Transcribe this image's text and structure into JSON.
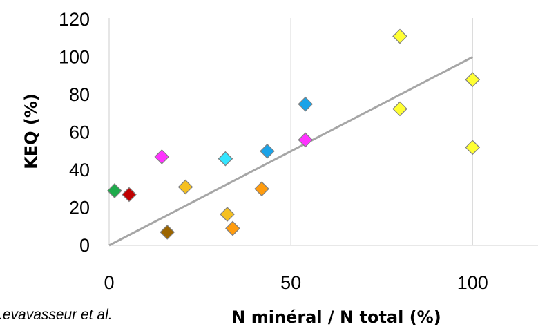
{
  "chart_data": {
    "type": "scatter",
    "xlabel": "N minéral / N total (%)",
    "ylabel": "KEQ (%)",
    "xlim": [
      0,
      118
    ],
    "ylim": [
      0,
      120
    ],
    "x_ticks": [
      0,
      50,
      100
    ],
    "y_ticks": [
      0,
      20,
      40,
      60,
      80,
      100,
      120
    ],
    "grid": "vertical",
    "trend_line": {
      "x": [
        0,
        100
      ],
      "y": [
        0,
        100
      ],
      "color": "#a6a6a6"
    },
    "points": [
      {
        "x": 1.5,
        "y": 29,
        "color": "#1eab4b"
      },
      {
        "x": 5.5,
        "y": 27,
        "color": "#c00000"
      },
      {
        "x": 14.5,
        "y": 47,
        "color": "#ff33ff"
      },
      {
        "x": 16,
        "y": 7,
        "color": "#9c6500"
      },
      {
        "x": 21,
        "y": 31,
        "color": "#f5c021"
      },
      {
        "x": 32,
        "y": 46,
        "color": "#33e5ff"
      },
      {
        "x": 32.5,
        "y": 16.5,
        "color": "#f5c021"
      },
      {
        "x": 34,
        "y": 9,
        "color": "#ff9c0f"
      },
      {
        "x": 42,
        "y": 30,
        "color": "#ff9c0f"
      },
      {
        "x": 43.5,
        "y": 50,
        "color": "#1ba3e8"
      },
      {
        "x": 54,
        "y": 75,
        "color": "#1ba3e8"
      },
      {
        "x": 54,
        "y": 56,
        "color": "#ff33ff"
      },
      {
        "x": 80,
        "y": 111,
        "color": "#ffff33"
      },
      {
        "x": 80,
        "y": 72.5,
        "color": "#ffff33"
      },
      {
        "x": 100,
        "y": 88,
        "color": "#ffff33"
      },
      {
        "x": 100,
        "y": 52,
        "color": "#ffff33"
      }
    ]
  },
  "source_note": ".evavasseur et al."
}
